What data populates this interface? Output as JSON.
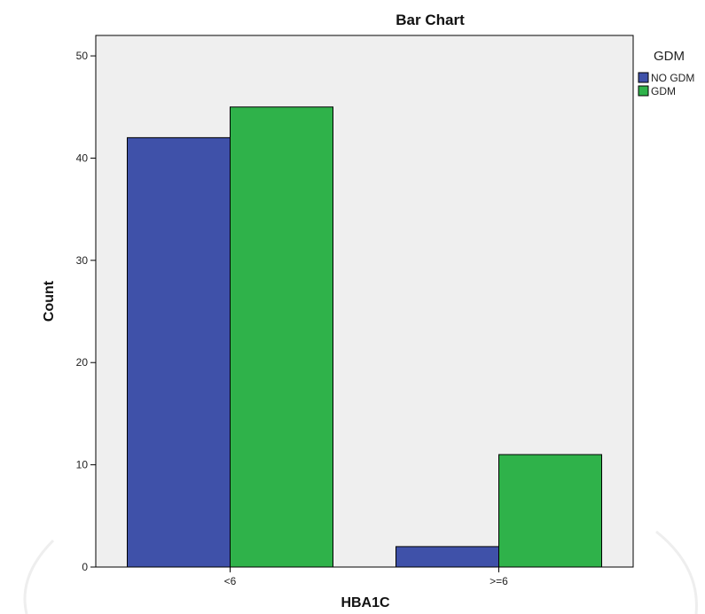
{
  "chart_data": {
    "type": "bar",
    "title": "Bar Chart",
    "xlabel": "HBA1C",
    "ylabel": "Count",
    "categories": [
      "<6",
      ">=6"
    ],
    "series": [
      {
        "name": "NO GDM",
        "values": [
          42,
          2
        ],
        "color": "#3f51a9"
      },
      {
        "name": "GDM",
        "values": [
          45,
          11
        ],
        "color": "#2fb24a"
      }
    ],
    "ylim": [
      0,
      52
    ],
    "yticks": [
      0,
      10,
      20,
      30,
      40,
      50
    ],
    "grid": false,
    "legend": {
      "title": "GDM",
      "placement": "right"
    },
    "plot_background": "#efefef"
  }
}
